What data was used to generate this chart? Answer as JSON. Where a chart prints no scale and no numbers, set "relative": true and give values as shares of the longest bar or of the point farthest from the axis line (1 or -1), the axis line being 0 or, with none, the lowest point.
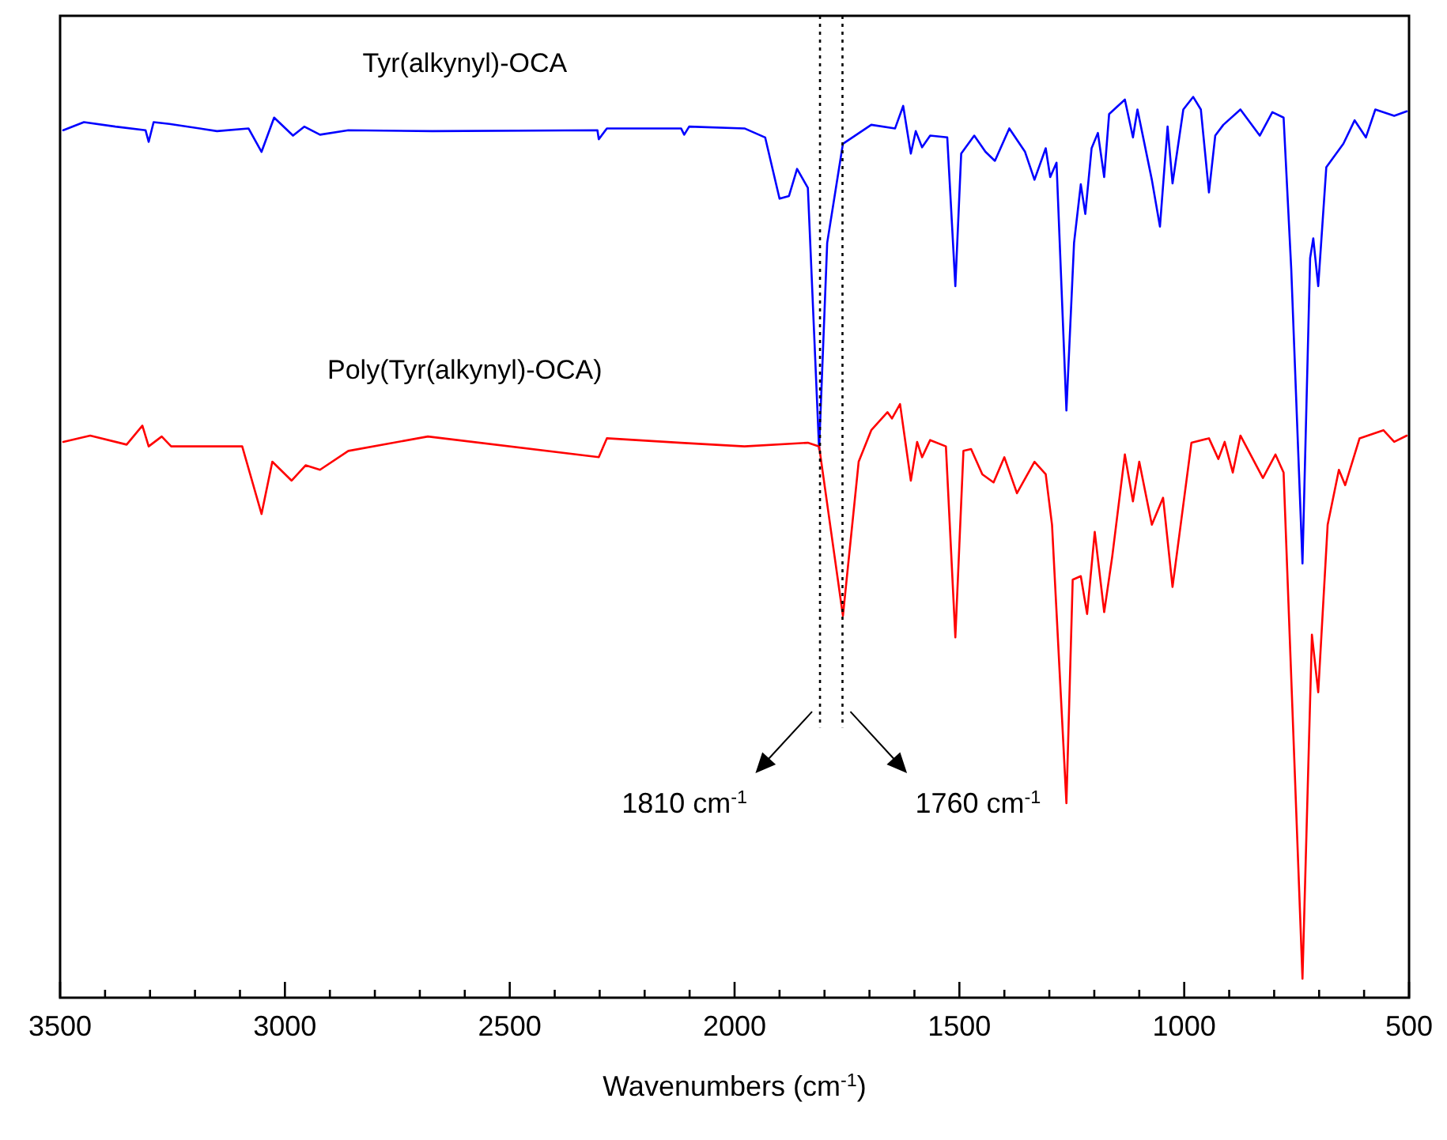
{
  "chart_data": {
    "type": "line",
    "relative": true,
    "xlabel": "Wavenumbers (cm$^{-1}$)",
    "xlim": [
      3500,
      500
    ],
    "xticks": [
      3500,
      {
        "value": 3400,
        "label": null
      },
      {
        "value": 3300,
        "label": null
      },
      {
        "value": 3200,
        "label": null
      },
      {
        "value": 3100,
        "label": null
      },
      3000,
      {
        "value": 2900,
        "label": null
      },
      {
        "value": 2800,
        "label": null
      },
      {
        "value": 2700,
        "label": null
      },
      {
        "value": 2600,
        "label": null
      },
      2500,
      {
        "value": 2400,
        "label": null
      },
      {
        "value": 2300,
        "label": null
      },
      {
        "value": 2200,
        "label": null
      },
      {
        "value": 2100,
        "label": null
      },
      2000,
      {
        "value": 1900,
        "label": null
      },
      {
        "value": 1800,
        "label": null
      },
      {
        "value": 1700,
        "label": null
      },
      {
        "value": 1600,
        "label": null
      },
      1500,
      {
        "value": 1400,
        "label": null
      },
      {
        "value": 1300,
        "label": null
      },
      {
        "value": 1200,
        "label": null
      },
      {
        "value": 1100,
        "label": null
      },
      1000,
      {
        "value": 900,
        "label": null
      },
      {
        "value": 800,
        "label": null
      },
      {
        "value": 700,
        "label": null
      },
      {
        "value": 600,
        "label": null
      },
      500
    ],
    "grid": false,
    "line_style": "solid",
    "marker": "none",
    "ref_lines": [
      {
        "axis": "x",
        "value": 1810,
        "line_style": "dotted",
        "color": "#000000"
      },
      {
        "axis": "x",
        "value": 1760,
        "line_style": "dotted",
        "color": "#000000"
      }
    ],
    "annotations": [
      "1810 cm$^{-1}$",
      "1760 cm$^{-1}$"
    ],
    "series": [
      {
        "name": "Tyr(alkynyl)-OCA",
        "color": "#0000ff",
        "x": [
          3493,
          3447,
          3377,
          3310,
          3303,
          3292,
          3257,
          3151,
          3081,
          3052,
          3024,
          2982,
          2957,
          2922,
          2859,
          2672,
          2305,
          2302,
          2284,
          2119,
          2112,
          2101,
          1978,
          1932,
          1900,
          1879,
          1861,
          1837,
          1812,
          1794,
          1759,
          1696,
          1643,
          1625,
          1608,
          1597,
          1583,
          1565,
          1527,
          1509,
          1496,
          1467,
          1442,
          1421,
          1389,
          1354,
          1333,
          1308,
          1298,
          1284,
          1262,
          1245,
          1230,
          1220,
          1206,
          1192,
          1178,
          1167,
          1132,
          1114,
          1104,
          1072,
          1054,
          1037,
          1026,
          1002,
          980,
          963,
          945,
          931,
          913,
          875,
          832,
          804,
          779,
          762,
          737,
          720,
          713,
          702,
          684,
          646,
          621,
          596,
          575,
          533,
          505
        ],
        "values": [
          0.963,
          0.972,
          0.967,
          0.963,
          0.95,
          0.972,
          0.97,
          0.962,
          0.965,
          0.939,
          0.977,
          0.957,
          0.967,
          0.958,
          0.963,
          0.962,
          0.963,
          0.953,
          0.965,
          0.965,
          0.958,
          0.967,
          0.965,
          0.955,
          0.887,
          0.89,
          0.92,
          0.899,
          0.609,
          0.838,
          0.948,
          0.969,
          0.965,
          0.99,
          0.937,
          0.962,
          0.944,
          0.957,
          0.955,
          0.79,
          0.937,
          0.957,
          0.939,
          0.929,
          0.965,
          0.939,
          0.908,
          0.943,
          0.911,
          0.927,
          0.652,
          0.838,
          0.903,
          0.87,
          0.943,
          0.96,
          0.911,
          0.981,
          0.997,
          0.955,
          0.986,
          0.908,
          0.856,
          0.967,
          0.904,
          0.986,
          1.0,
          0.986,
          0.894,
          0.957,
          0.969,
          0.986,
          0.957,
          0.983,
          0.977,
          0.809,
          0.482,
          0.821,
          0.843,
          0.79,
          0.922,
          0.948,
          0.974,
          0.955,
          0.986,
          0.979,
          0.984
        ]
      },
      {
        "name": "Poly(Tyr(alkynyl)-OCA)",
        "color": "#ff0000",
        "x": [
          3493,
          3433,
          3352,
          3317,
          3303,
          3274,
          3253,
          3095,
          3052,
          3028,
          2985,
          2954,
          2922,
          2859,
          2682,
          2302,
          2284,
          2119,
          1978,
          1837,
          1812,
          1759,
          1724,
          1696,
          1660,
          1650,
          1632,
          1608,
          1594,
          1583,
          1565,
          1530,
          1509,
          1491,
          1474,
          1449,
          1424,
          1400,
          1372,
          1333,
          1308,
          1294,
          1262,
          1248,
          1230,
          1216,
          1199,
          1178,
          1160,
          1132,
          1114,
          1100,
          1072,
          1047,
          1026,
          984,
          945,
          924,
          910,
          892,
          875,
          825,
          797,
          779,
          737,
          716,
          702,
          681,
          656,
          642,
          610,
          557,
          533,
          505
        ],
        "values": [
          0.617,
          0.624,
          0.614,
          0.635,
          0.612,
          0.623,
          0.612,
          0.612,
          0.537,
          0.595,
          0.574,
          0.591,
          0.586,
          0.607,
          0.623,
          0.6,
          0.621,
          0.616,
          0.612,
          0.616,
          0.612,
          0.424,
          0.595,
          0.63,
          0.65,
          0.643,
          0.659,
          0.574,
          0.617,
          0.6,
          0.619,
          0.612,
          0.4,
          0.607,
          0.609,
          0.581,
          0.572,
          0.6,
          0.56,
          0.595,
          0.581,
          0.525,
          0.216,
          0.464,
          0.468,
          0.426,
          0.517,
          0.428,
          0.49,
          0.603,
          0.551,
          0.595,
          0.525,
          0.555,
          0.456,
          0.616,
          0.621,
          0.598,
          0.617,
          0.583,
          0.624,
          0.577,
          0.603,
          0.583,
          0.021,
          0.403,
          0.339,
          0.525,
          0.586,
          0.569,
          0.621,
          0.63,
          0.617,
          0.624
        ]
      }
    ]
  }
}
